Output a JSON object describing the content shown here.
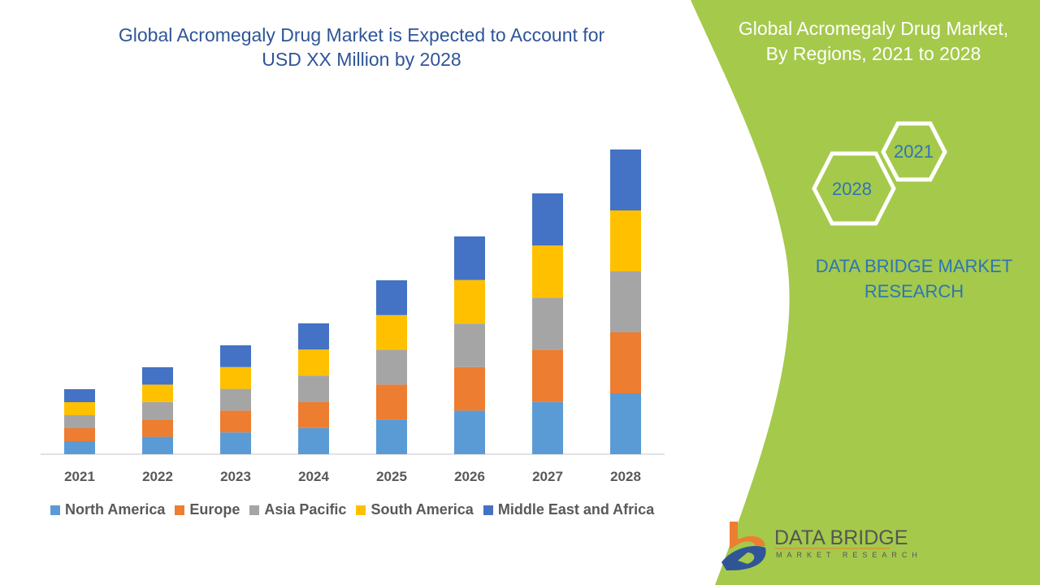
{
  "header": {
    "title_line1": "Global Acromegaly Drug Market is Expected to Account for",
    "title_line2": "USD XX Million by 2028"
  },
  "side_panel": {
    "title_line1": "Global Acromegaly Drug Market,",
    "title_line2": "By Regions, 2021 to 2028",
    "hex_start": "2021",
    "hex_end": "2028",
    "brand_line1": "DATA BRIDGE MARKET",
    "brand_line2": "RESEARCH",
    "panel_color": "#a5c94b"
  },
  "logo": {
    "name": "DATA BRIDGE",
    "tagline": "MARKET RESEARCH"
  },
  "chart_data": {
    "type": "bar",
    "stacked": true,
    "title": "Global Acromegaly Drug Market is Expected to Account for USD XX Million by 2028",
    "categories": [
      "2021",
      "2022",
      "2023",
      "2024",
      "2025",
      "2026",
      "2027",
      "2028"
    ],
    "series": [
      {
        "name": "North America",
        "color": "#5b9bd5",
        "values": [
          16,
          21.4,
          26.8,
          32.2,
          42.8,
          53.6,
          64.2,
          75
        ]
      },
      {
        "name": "Europe",
        "color": "#ed7d31",
        "values": [
          16,
          21.4,
          26.8,
          32.2,
          42.8,
          53.6,
          64.2,
          75
        ]
      },
      {
        "name": "Asia Pacific",
        "color": "#a5a5a5",
        "values": [
          16,
          21.4,
          26.8,
          32.2,
          42.8,
          53.6,
          64.2,
          75
        ]
      },
      {
        "name": "South America",
        "color": "#ffc000",
        "values": [
          16,
          21.4,
          26.8,
          32.2,
          42.8,
          53.6,
          64.2,
          75
        ]
      },
      {
        "name": "Middle East and Africa",
        "color": "#4472c4",
        "values": [
          16,
          21.4,
          26.8,
          32.2,
          42.8,
          53.6,
          64.2,
          75
        ]
      }
    ],
    "ylim": [
      0,
      375
    ],
    "grid": false,
    "y_axis_shown": false,
    "legend": "bottom"
  }
}
